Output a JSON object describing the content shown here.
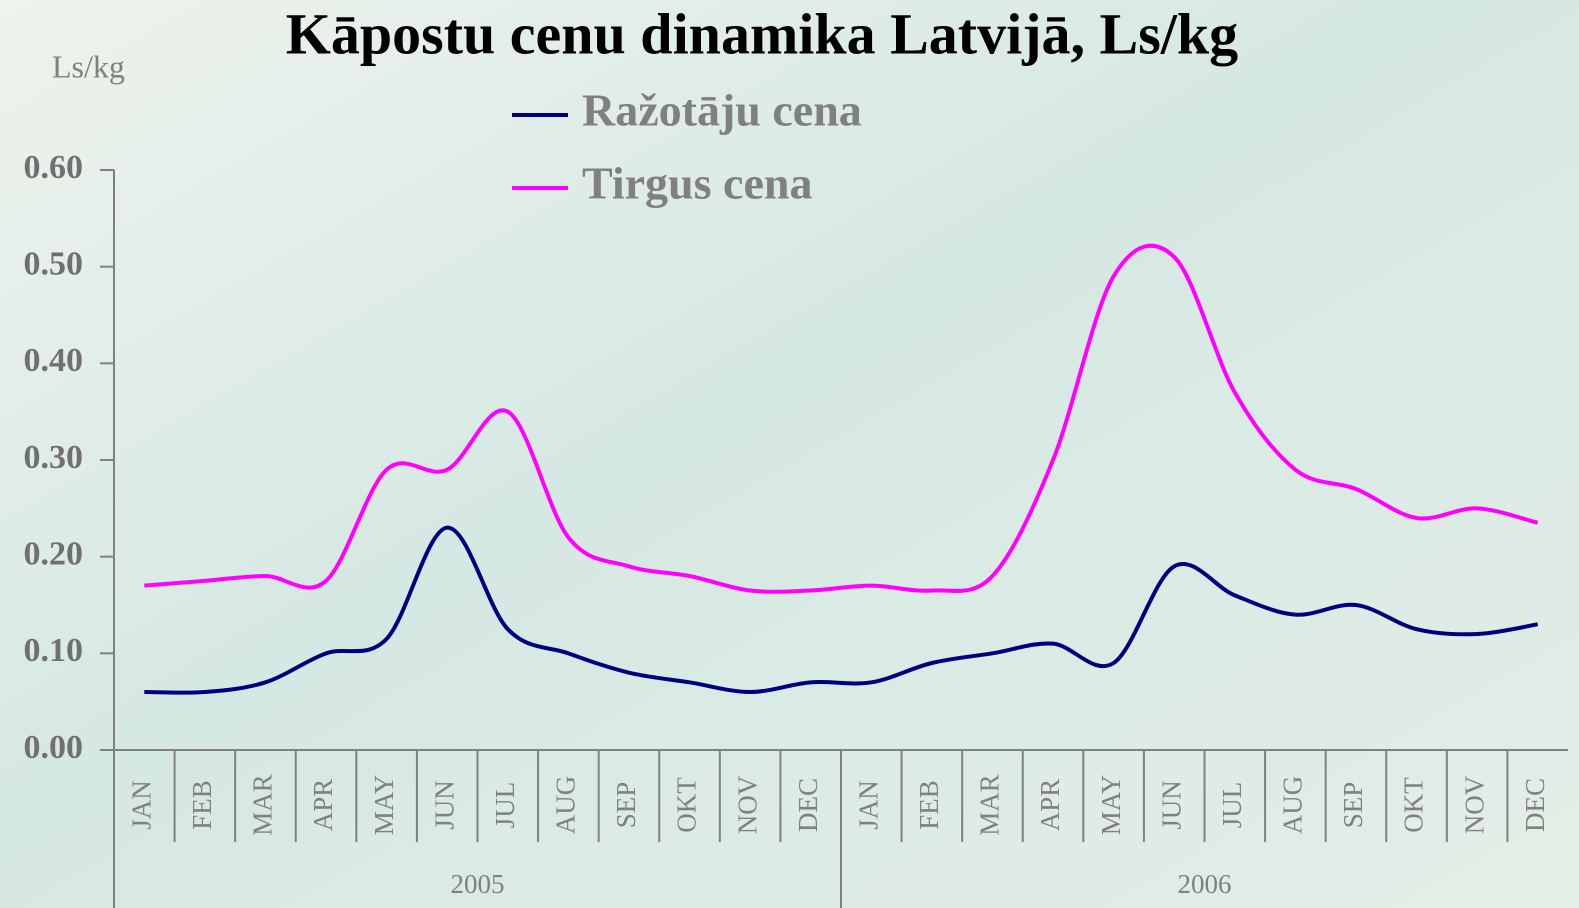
{
  "chart_data": {
    "type": "line",
    "title": "Kāpostu cenu dinamika Latvijā, Ls/kg",
    "y_label": "Ls/kg",
    "categories": [
      "JAN",
      "FEB",
      "MAR",
      "APR",
      "MAY",
      "JUN",
      "JUL",
      "AUG",
      "SEP",
      "OKT",
      "NOV",
      "DEC",
      "JAN",
      "FEB",
      "MAR",
      "APR",
      "MAY",
      "JUN",
      "JUL",
      "AUG",
      "SEP",
      "OKT",
      "NOV",
      "DEC"
    ],
    "year_groups": [
      "2005",
      "2006"
    ],
    "series": [
      {
        "name": "Ražotāju cena",
        "color": "#000080",
        "values": [
          0.06,
          0.06,
          0.07,
          0.1,
          0.115,
          0.23,
          0.125,
          0.1,
          0.08,
          0.07,
          0.06,
          0.07,
          0.07,
          0.09,
          0.1,
          0.11,
          0.09,
          0.19,
          0.16,
          0.14,
          0.15,
          0.125,
          0.12,
          0.13
        ]
      },
      {
        "name": "Tirgus cena",
        "color": "#ff00ff",
        "values": [
          0.17,
          0.175,
          0.18,
          0.175,
          0.29,
          0.29,
          0.35,
          0.22,
          0.19,
          0.18,
          0.165,
          0.165,
          0.17,
          0.165,
          0.18,
          0.3,
          0.49,
          0.51,
          0.37,
          0.29,
          0.27,
          0.24,
          0.25,
          0.235
        ]
      }
    ],
    "ylim": [
      0,
      0.6
    ],
    "yticks": [
      {
        "value": 0,
        "label": "0.00"
      },
      {
        "value": 0.1,
        "label": "0.10"
      },
      {
        "value": 0.2,
        "label": "0.20"
      },
      {
        "value": 0.3,
        "label": "0.30"
      },
      {
        "value": 0.4,
        "label": "0.40"
      },
      {
        "value": 0.5,
        "label": "0.50"
      },
      {
        "value": 0.6,
        "label": "0.60"
      }
    ]
  }
}
